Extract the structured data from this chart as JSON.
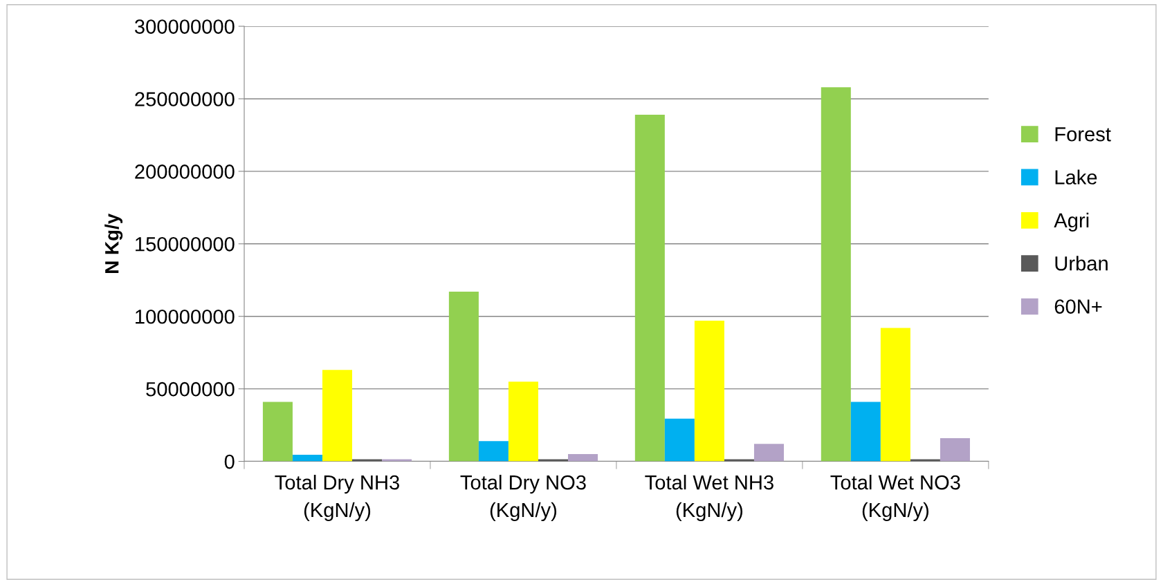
{
  "chart_data": {
    "type": "bar",
    "ylabel": "N Kg/y",
    "categories": [
      "Total Dry NH3\n(KgN/y)",
      "Total Dry NO3\n(KgN/y)",
      "Total Wet NH3\n(KgN/y)",
      "Total Wet NO3\n(KgN/y)"
    ],
    "series": [
      {
        "name": "Forest",
        "color": "#92d050",
        "values": [
          41000000,
          117000000,
          239000000,
          258000000
        ]
      },
      {
        "name": "Lake",
        "color": "#00b0f0",
        "values": [
          4500000,
          14000000,
          29500000,
          41000000
        ]
      },
      {
        "name": "Agri",
        "color": "#ffff00",
        "values": [
          63000000,
          55000000,
          97000000,
          92000000
        ]
      },
      {
        "name": "Urban",
        "color": "#595959",
        "values": [
          1500000,
          1500000,
          1500000,
          1500000
        ]
      },
      {
        "name": "60N+",
        "color": "#b3a2c7",
        "values": [
          1500000,
          5000000,
          12000000,
          16000000
        ]
      }
    ],
    "ylim": [
      0,
      300000000
    ],
    "yticks": [
      0,
      50000000,
      100000000,
      150000000,
      200000000,
      250000000,
      300000000
    ],
    "grid": "y",
    "legend": "right"
  }
}
